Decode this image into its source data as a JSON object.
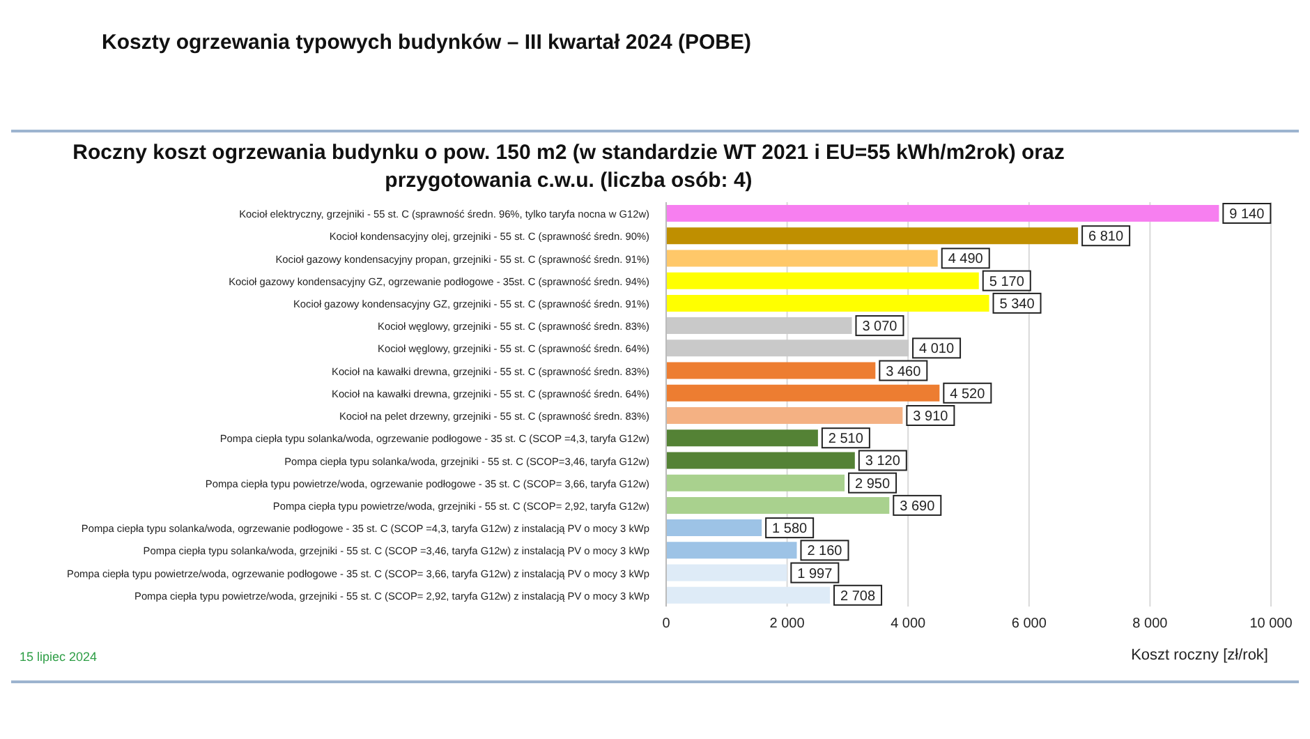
{
  "chart_data": {
    "type": "bar",
    "orientation": "horizontal",
    "title": "Koszty ogrzewania typowych budynków – III kwartał 2024 (POBE)",
    "subtitle": "Roczny koszt ogrzewania budynku  o pow. 150 m2 (w standardzie WT 2021 i EU=55 kWh/m2rok) oraz przygotowania c.w.u. (liczba osób: 4)",
    "xlabel": "Koszt roczny [zł/rok]",
    "categories": [
      "Kocioł  elektryczny, grzejniki - 55 st. C  (sprawność średn. 96%, tylko taryfa nocna w G12w)",
      "Kocioł  kondensacyjny olej, grzejniki - 55 st. C   (sprawność średn. 90%)",
      "Kocioł gazowy kondensacyjny propan, grzejniki - 55 st. C  (sprawność  średn. 91%)",
      "Kocioł gazowy kondensacyjny GZ, ogrzewanie podłogowe - 35st. C  (sprawność średn. 94%)",
      "Kocioł gazowy kondensacyjny GZ, grzejniki - 55 st. C   (sprawność średn. 91%)",
      "Kocioł węglowy,  grzejniki - 55 st. C   (sprawność średn. 83%)",
      "Kocioł węglowy,  grzejniki - 55 st. C  (sprawność  średn. 64%)",
      "Kocioł na kawałki drewna, grzejniki - 55 st. C (sprawność  średn. 83%)",
      "Kocioł na kawałki drewna, grzejniki - 55 st. C  (sprawność średn. 64%)",
      "Kocioł na pelet drzewny, grzejniki - 55 st. C (sprawność średn. 83%)",
      "Pompa ciepła typu solanka/woda, ogrzewanie podłogowe - 35 st. C  (SCOP =4,3, taryfa G12w)",
      "Pompa ciepła typu solanka/woda, grzejniki - 55 st. C (SCOP=3,46, taryfa G12w)",
      "Pompa ciepła typu powietrze/woda, ogrzewanie podłogowe - 35 st. C (SCOP= 3,66, taryfa G12w)",
      "Pompa ciepła typu powietrze/woda, grzejniki - 55 st. C (SCOP= 2,92, taryfa G12w)",
      "Pompa ciepła typu solanka/woda, ogrzewanie podłogowe - 35 st. C  (SCOP =4,3, taryfa G12w) z instalacją PV o mocy 3 kWp",
      "Pompa ciepła typu solanka/woda, grzejniki - 55 st. C (SCOP =3,46, taryfa G12w) z instalacją PV o mocy 3 kWp",
      "Pompa ciepła typu powietrze/woda, ogrzewanie podłogowe - 35 st. C (SCOP= 3,66, taryfa G12w) z instalacją PV o mocy 3 kWp",
      "Pompa ciepła typu powietrze/woda, grzejniki - 55 st. C (SCOP= 2,92, taryfa G12w) z instalacją PV o mocy 3 kWp"
    ],
    "values": [
      9140,
      6810,
      4490,
      5170,
      5340,
      3070,
      4010,
      3460,
      4520,
      3910,
      2510,
      3120,
      2950,
      3690,
      1580,
      2160,
      1997,
      2708
    ],
    "value_labels": [
      "9 140",
      "6 810",
      "4 490",
      "5 170",
      "5 340",
      "3 070",
      "4 010",
      "3 460",
      "4 520",
      "3 910",
      "2 510",
      "3 120",
      "2 950",
      "3 690",
      "1 580",
      "2 160",
      "1 997",
      "2 708"
    ],
    "colors": [
      "#f77ff0",
      "#bf8f00",
      "#ffc869",
      "#ffff00",
      "#ffff00",
      "#c9c9c9",
      "#c9c9c9",
      "#ed7d31",
      "#ed7d31",
      "#f4b183",
      "#548235",
      "#548235",
      "#a9d18e",
      "#a9d18e",
      "#9dc3e6",
      "#9dc3e6",
      "#deebf7",
      "#deebf7"
    ],
    "xlim": [
      0,
      10000
    ],
    "xticks": [
      0,
      {
        "value": 2000,
        "label": "2 000"
      },
      {
        "value": 4000,
        "label": "4 000"
      },
      {
        "value": 6000,
        "label": "6 000"
      },
      {
        "value": 8000,
        "label": "8 000"
      },
      {
        "value": 10000,
        "label": "10 000"
      }
    ],
    "grid": "x",
    "annotations": [
      "15 lipiec 2024"
    ]
  }
}
